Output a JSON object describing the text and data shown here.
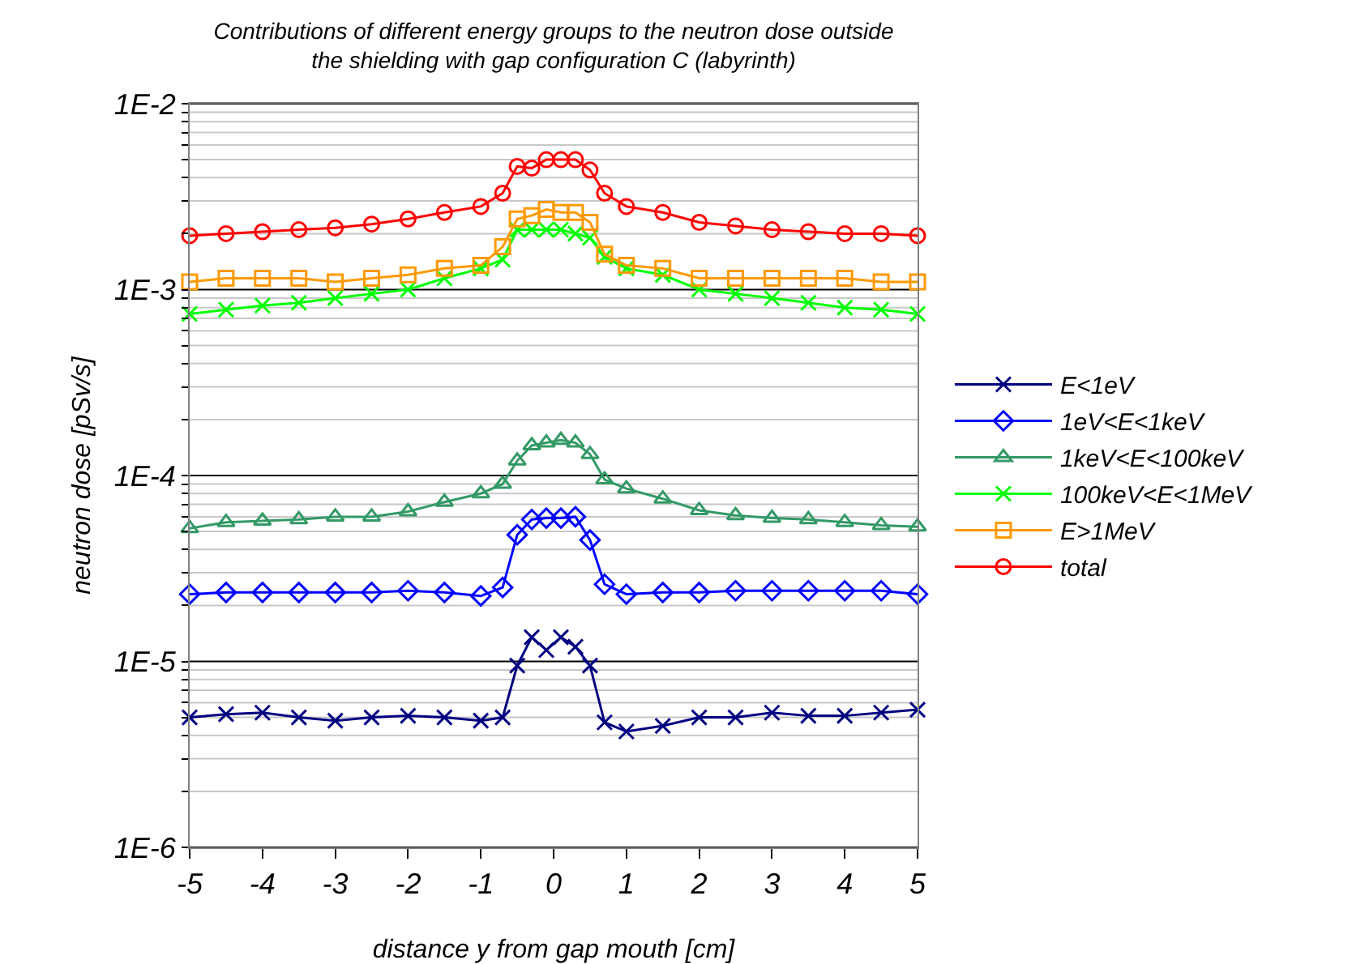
{
  "chart_data": {
    "type": "line",
    "title": "Contributions of different energy groups to the neutron dose outside\nthe shielding with gap configuration C (labyrinth)",
    "xlabel": "distance y from gap mouth [cm]",
    "ylabel": "neutron dose [pSv/s]",
    "x": [
      -5,
      -4.5,
      -4,
      -3.5,
      -3,
      -2.5,
      -2,
      -1.5,
      -1,
      -0.7,
      -0.5,
      -0.3,
      -0.1,
      0.1,
      0.3,
      0.5,
      0.7,
      1,
      1.5,
      2,
      2.5,
      3,
      3.5,
      4,
      4.5,
      5
    ],
    "series": [
      {
        "name": "E<1eV",
        "color": "#000080",
        "marker": "cross",
        "values": [
          5e-06,
          5.2e-06,
          5.3e-06,
          5e-06,
          4.8e-06,
          5e-06,
          5.1e-06,
          5e-06,
          4.8e-06,
          5e-06,
          9.5e-06,
          1.35e-05,
          1.15e-05,
          1.35e-05,
          1.2e-05,
          9.5e-06,
          4.7e-06,
          4.2e-06,
          4.5e-06,
          5e-06,
          5e-06,
          5.3e-06,
          5.1e-06,
          5.1e-06,
          5.3e-06,
          5.5e-06
        ]
      },
      {
        "name": "1eV<E<1keV",
        "color": "#0000ff",
        "marker": "diamond",
        "values": [
          2.3e-05,
          2.35e-05,
          2.35e-05,
          2.35e-05,
          2.35e-05,
          2.35e-05,
          2.4e-05,
          2.35e-05,
          2.25e-05,
          2.5e-05,
          4.8e-05,
          5.8e-05,
          5.9e-05,
          5.9e-05,
          6e-05,
          4.5e-05,
          2.6e-05,
          2.3e-05,
          2.35e-05,
          2.35e-05,
          2.4e-05,
          2.4e-05,
          2.4e-05,
          2.4e-05,
          2.4e-05,
          2.3e-05
        ]
      },
      {
        "name": "1keV<E<100keV",
        "color": "#339966",
        "marker": "triangle",
        "values": [
          5.2e-05,
          5.6e-05,
          5.7e-05,
          5.8e-05,
          6e-05,
          6e-05,
          6.4e-05,
          7.2e-05,
          8e-05,
          9e-05,
          0.00012,
          0.000145,
          0.00015,
          0.000155,
          0.00015,
          0.00013,
          9.5e-05,
          8.5e-05,
          7.5e-05,
          6.5e-05,
          6.1e-05,
          5.9e-05,
          5.8e-05,
          5.6e-05,
          5.4e-05,
          5.3e-05
        ]
      },
      {
        "name": "100keV<E<1MeV",
        "color": "#00ff00",
        "marker": "cross",
        "values": [
          0.00074,
          0.00078,
          0.00082,
          0.00085,
          0.0009,
          0.00095,
          0.001,
          0.00115,
          0.0013,
          0.00145,
          0.0021,
          0.0021,
          0.0021,
          0.0021,
          0.002,
          0.0019,
          0.0015,
          0.0013,
          0.0012,
          0.001,
          0.00095,
          0.0009,
          0.00085,
          0.0008,
          0.00078,
          0.00074
        ]
      },
      {
        "name": "E>1MeV",
        "color": "#ff9900",
        "marker": "square",
        "values": [
          0.0011,
          0.00115,
          0.00115,
          0.00115,
          0.0011,
          0.00115,
          0.0012,
          0.0013,
          0.00135,
          0.0017,
          0.0024,
          0.0025,
          0.0027,
          0.0026,
          0.0026,
          0.0023,
          0.00155,
          0.00135,
          0.0013,
          0.00115,
          0.00115,
          0.00115,
          0.00115,
          0.00115,
          0.0011,
          0.0011
        ]
      },
      {
        "name": "total",
        "color": "#ff0000",
        "marker": "circle",
        "values": [
          0.00195,
          0.002,
          0.00205,
          0.0021,
          0.00215,
          0.00225,
          0.0024,
          0.0026,
          0.0028,
          0.0033,
          0.0046,
          0.0045,
          0.005,
          0.005,
          0.005,
          0.0044,
          0.0033,
          0.0028,
          0.0026,
          0.0023,
          0.0022,
          0.0021,
          0.00205,
          0.002,
          0.002,
          0.00195
        ]
      }
    ],
    "log": "y",
    "xlim": [
      -5,
      5
    ],
    "xticks": [
      -5,
      -4,
      -3,
      -2,
      -1,
      0,
      1,
      2,
      3,
      4,
      5
    ],
    "ylim": [
      1e-06,
      0.01
    ],
    "yticks": [
      {
        "value": 1e-06,
        "label": "1E-6"
      },
      {
        "value": 2e-06,
        "label": null
      },
      {
        "value": 3e-06,
        "label": null
      },
      {
        "value": 4e-06,
        "label": null
      },
      {
        "value": 5e-06,
        "label": null
      },
      {
        "value": 6e-06,
        "label": null
      },
      {
        "value": 7e-06,
        "label": null
      },
      {
        "value": 8e-06,
        "label": null
      },
      {
        "value": 9e-06,
        "label": null
      },
      {
        "value": 1e-05,
        "label": "1E-5"
      },
      {
        "value": 2e-05,
        "label": null
      },
      {
        "value": 3e-05,
        "label": null
      },
      {
        "value": 4e-05,
        "label": null
      },
      {
        "value": 5e-05,
        "label": null
      },
      {
        "value": 6e-05,
        "label": null
      },
      {
        "value": 7e-05,
        "label": null
      },
      {
        "value": 8e-05,
        "label": null
      },
      {
        "value": 9e-05,
        "label": null
      },
      {
        "value": 0.0001,
        "label": "1E-4"
      },
      {
        "value": 0.0002,
        "label": null
      },
      {
        "value": 0.0003,
        "label": null
      },
      {
        "value": 0.0004,
        "label": null
      },
      {
        "value": 0.0005,
        "label": null
      },
      {
        "value": 0.0006,
        "label": null
      },
      {
        "value": 0.0007,
        "label": null
      },
      {
        "value": 0.0008,
        "label": null
      },
      {
        "value": 0.0009,
        "label": null
      },
      {
        "value": 0.001,
        "label": "1E-3"
      },
      {
        "value": 0.002,
        "label": null
      },
      {
        "value": 0.003,
        "label": null
      },
      {
        "value": 0.004,
        "label": null
      },
      {
        "value": 0.005,
        "label": null
      },
      {
        "value": 0.006,
        "label": null
      },
      {
        "value": 0.007,
        "label": null
      },
      {
        "value": 0.008,
        "label": null
      },
      {
        "value": 0.009,
        "label": null
      },
      {
        "value": 0.01,
        "label": "1E-2"
      }
    ],
    "grid": "y",
    "legend": "right",
    "line_style": "solid"
  }
}
